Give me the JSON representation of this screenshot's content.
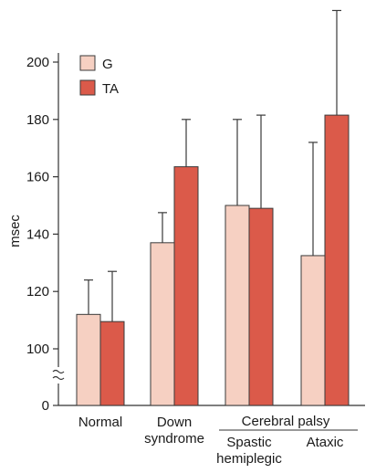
{
  "chart_data": {
    "type": "bar",
    "ylabel": "msec",
    "xlabel": "",
    "ylim": [
      100,
      220
    ],
    "y_ticks": [
      0,
      100,
      120,
      140,
      160,
      180,
      200
    ],
    "axis_break": true,
    "grid": false,
    "legend_position": "top-left",
    "categories": [
      "Normal",
      "Down syndrome",
      "Spastic hemiplegic",
      "Ataxic"
    ],
    "category_label_lines": [
      [
        "Normal"
      ],
      [
        "Down",
        "syndrome"
      ],
      [
        "Spastic",
        "hemiplegic"
      ],
      [
        "Ataxic"
      ]
    ],
    "group_label": {
      "text": "Cerebral palsy",
      "categories": [
        "Spastic hemiplegic",
        "Ataxic"
      ]
    },
    "series": [
      {
        "name": "G",
        "color": "#f6d0c2",
        "values": [
          112,
          137,
          150,
          132.5
        ],
        "error_upper": [
          124,
          147.5,
          180,
          172
        ]
      },
      {
        "name": "TA",
        "color": "#db5a4a",
        "values": [
          109.5,
          163.5,
          149,
          181.5
        ],
        "error_upper": [
          127,
          180,
          181.5,
          218
        ]
      }
    ]
  }
}
